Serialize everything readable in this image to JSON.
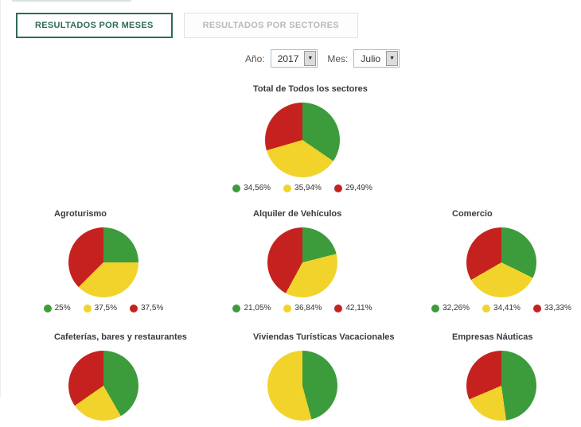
{
  "tabs": [
    {
      "label": "RESULTADOS POR MESES",
      "active": true
    },
    {
      "label": "RESULTADOS POR SECTORES",
      "active": false
    }
  ],
  "filters": {
    "year_label": "Año:",
    "year_value": "2017",
    "month_label": "Mes:",
    "month_value": "Julio"
  },
  "colors": {
    "green": "#3C9C3C",
    "yellow": "#F2D32B",
    "red": "#C5221F",
    "tab_active": "#2F6B58"
  },
  "chart_data": [
    {
      "type": "pie",
      "id": "total",
      "title": "Total de Todos los sectores",
      "legend_position": "bottom",
      "slices": [
        {
          "color": "green",
          "value": 34.56,
          "label": "34,56%"
        },
        {
          "color": "yellow",
          "value": 35.94,
          "label": "35,94%"
        },
        {
          "color": "red",
          "value": 29.49,
          "label": "29,49%"
        }
      ]
    },
    {
      "type": "pie",
      "id": "agroturismo",
      "title": "Agroturismo",
      "legend_position": "bottom",
      "slices": [
        {
          "color": "green",
          "value": 25,
          "label": "25%"
        },
        {
          "color": "yellow",
          "value": 37.5,
          "label": "37,5%"
        },
        {
          "color": "red",
          "value": 37.5,
          "label": "37,5%"
        }
      ]
    },
    {
      "type": "pie",
      "id": "alquiler",
      "title": "Alquiler de Vehículos",
      "legend_position": "bottom",
      "slices": [
        {
          "color": "green",
          "value": 21.05,
          "label": "21,05%"
        },
        {
          "color": "yellow",
          "value": 36.84,
          "label": "36,84%"
        },
        {
          "color": "red",
          "value": 42.11,
          "label": "42,11%"
        }
      ]
    },
    {
      "type": "pie",
      "id": "comercio",
      "title": "Comercio",
      "legend_position": "bottom",
      "slices": [
        {
          "color": "green",
          "value": 32.26,
          "label": "32,26%"
        },
        {
          "color": "yellow",
          "value": 34.41,
          "label": "34,41%"
        },
        {
          "color": "red",
          "value": 33.33,
          "label": "33,33%"
        }
      ]
    },
    {
      "type": "pie",
      "id": "cafeterias",
      "title": "Cafeterías, bares y restaurantes",
      "legend_position": "cut-off",
      "slices": [
        {
          "color": "green",
          "value": 41.7,
          "label": ""
        },
        {
          "color": "yellow",
          "value": 23.6,
          "label": ""
        },
        {
          "color": "red",
          "value": 34.7,
          "label": ""
        }
      ]
    },
    {
      "type": "pie",
      "id": "viviendas",
      "title": "Viviendas Turísticas Vacacionales",
      "legend_position": "cut-off",
      "slices": [
        {
          "color": "green",
          "value": 45.8,
          "label": ""
        },
        {
          "color": "yellow",
          "value": 54.2,
          "label": ""
        },
        {
          "color": "red",
          "value": 0,
          "label": ""
        }
      ]
    },
    {
      "type": "pie",
      "id": "nauticas",
      "title": "Empresas Náuticas",
      "legend_position": "cut-off",
      "slices": [
        {
          "color": "green",
          "value": 47.8,
          "label": ""
        },
        {
          "color": "yellow",
          "value": 20.8,
          "label": ""
        },
        {
          "color": "red",
          "value": 31.4,
          "label": ""
        }
      ]
    }
  ]
}
